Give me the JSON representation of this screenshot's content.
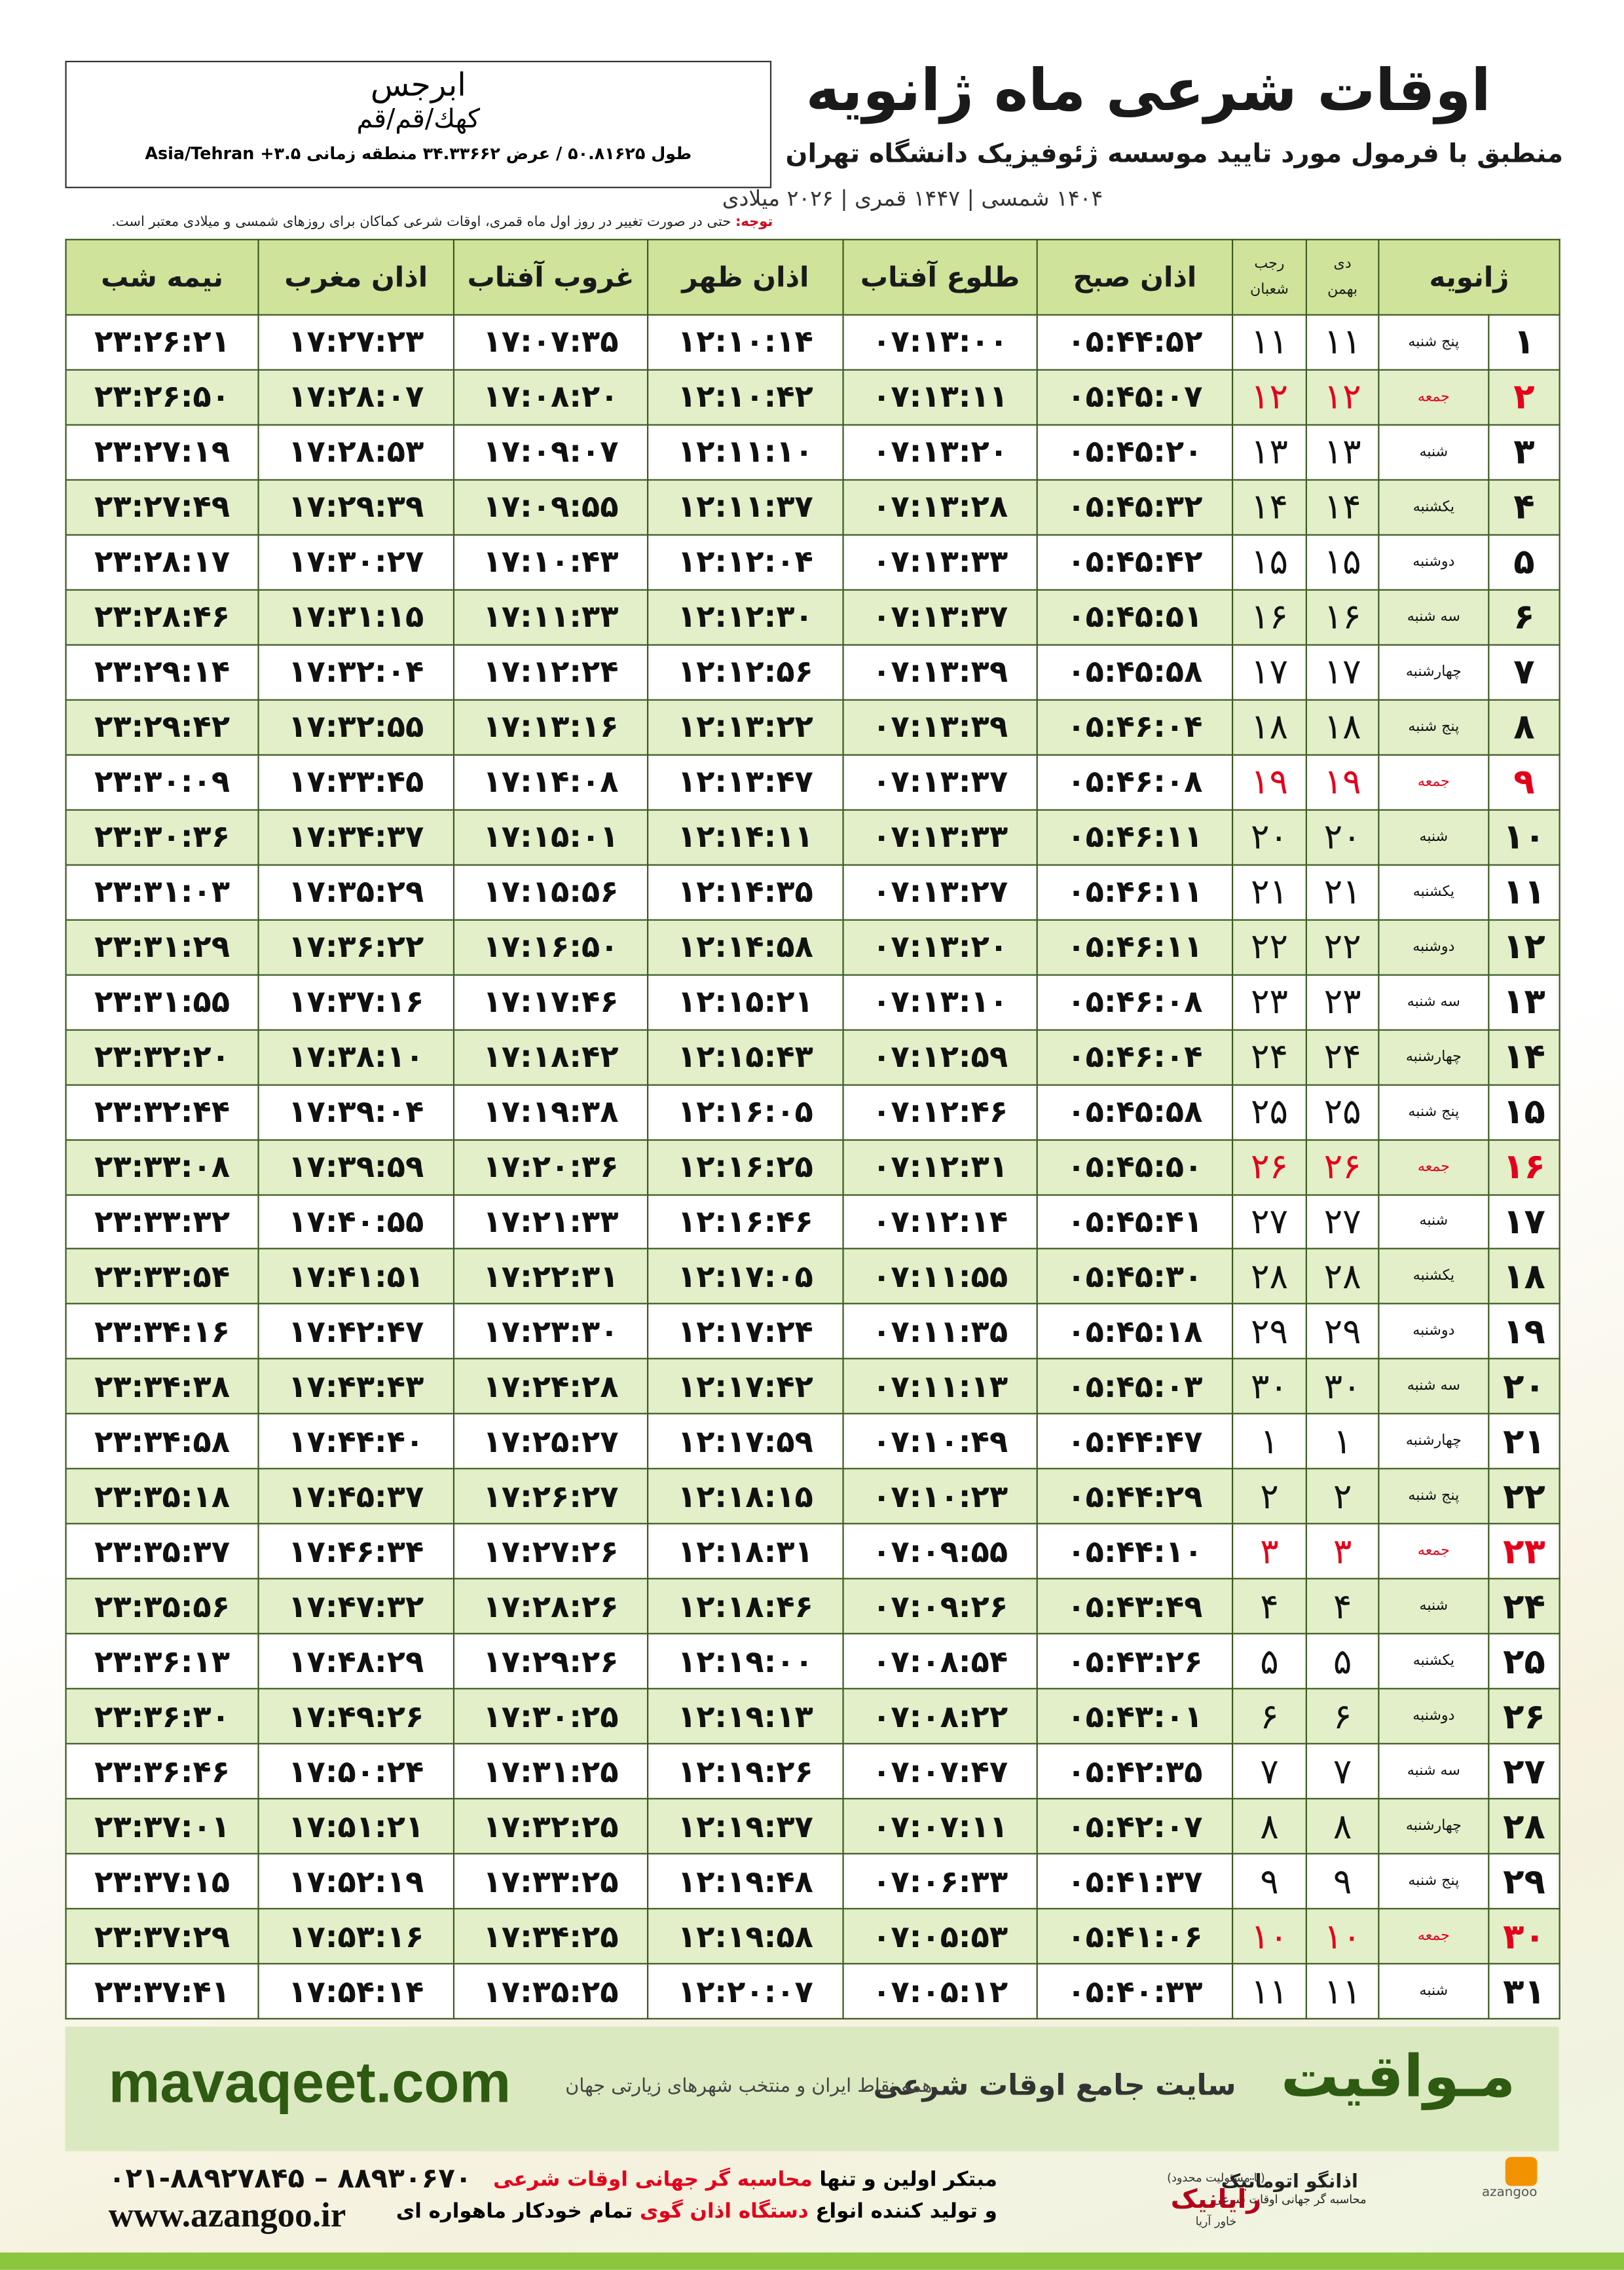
{
  "header": {
    "title": "اوقات شرعی ماه ژانویه",
    "subtitle": "منطبق با فرمول مورد تایید موسسه ژئوفیزیک دانشگاه تهران",
    "dates": "۱۴۰۴ شمسی | ۱۴۴۷ قمری | ۲۰۲۶ میلادی"
  },
  "location": {
    "name": "ابرجس",
    "region": "کهك/قم/قم",
    "coords": "طول ۵۰.۸۱۶۲۵ / عرض ۳۴.۳۳۶۶۲ منطقه زمانی ۳.۵+ Asia/Tehran"
  },
  "note": {
    "label": "توجه:",
    "text": "حتی در صورت تغییر در روز اول ماه قمری، اوقات شرعی کماکان برای روزهای شمسی و میلادی معتبر است."
  },
  "table": {
    "headers": [
      "ژانویه",
      {
        "top": "دی",
        "bottom": "بهمن"
      },
      {
        "top": "رجب",
        "bottom": "شعبان"
      },
      "اذان صبح",
      "طلوع آفتاب",
      "اذان ظهر",
      "غروب آفتاب",
      "اذان مغرب",
      "نیمه شب"
    ],
    "rows": [
      [
        "۱",
        "پنج شنبه",
        "۱۱",
        "۱۱",
        "۰۵:۴۴:۵۲",
        "۰۷:۱۳:۰۰",
        "۱۲:۱۰:۱۴",
        "۱۷:۰۷:۳۵",
        "۱۷:۲۷:۲۳",
        "۲۳:۲۶:۲۱"
      ],
      [
        "۲",
        "جمعه",
        "۱۲",
        "۱۲",
        "۰۵:۴۵:۰۷",
        "۰۷:۱۳:۱۱",
        "۱۲:۱۰:۴۲",
        "۱۷:۰۸:۲۰",
        "۱۷:۲۸:۰۷",
        "۲۳:۲۶:۵۰"
      ],
      [
        "۳",
        "شنبه",
        "۱۳",
        "۱۳",
        "۰۵:۴۵:۲۰",
        "۰۷:۱۳:۲۰",
        "۱۲:۱۱:۱۰",
        "۱۷:۰۹:۰۷",
        "۱۷:۲۸:۵۳",
        "۲۳:۲۷:۱۹"
      ],
      [
        "۴",
        "یکشنبه",
        "۱۴",
        "۱۴",
        "۰۵:۴۵:۳۲",
        "۰۷:۱۳:۲۸",
        "۱۲:۱۱:۳۷",
        "۱۷:۰۹:۵۵",
        "۱۷:۲۹:۳۹",
        "۲۳:۲۷:۴۹"
      ],
      [
        "۵",
        "دوشنبه",
        "۱۵",
        "۱۵",
        "۰۵:۴۵:۴۲",
        "۰۷:۱۳:۳۳",
        "۱۲:۱۲:۰۴",
        "۱۷:۱۰:۴۳",
        "۱۷:۳۰:۲۷",
        "۲۳:۲۸:۱۷"
      ],
      [
        "۶",
        "سه شنبه",
        "۱۶",
        "۱۶",
        "۰۵:۴۵:۵۱",
        "۰۷:۱۳:۳۷",
        "۱۲:۱۲:۳۰",
        "۱۷:۱۱:۳۳",
        "۱۷:۳۱:۱۵",
        "۲۳:۲۸:۴۶"
      ],
      [
        "۷",
        "چهارشنبه",
        "۱۷",
        "۱۷",
        "۰۵:۴۵:۵۸",
        "۰۷:۱۳:۳۹",
        "۱۲:۱۲:۵۶",
        "۱۷:۱۲:۲۴",
        "۱۷:۳۲:۰۴",
        "۲۳:۲۹:۱۴"
      ],
      [
        "۸",
        "پنج شنبه",
        "۱۸",
        "۱۸",
        "۰۵:۴۶:۰۴",
        "۰۷:۱۳:۳۹",
        "۱۲:۱۳:۲۲",
        "۱۷:۱۳:۱۶",
        "۱۷:۳۲:۵۵",
        "۲۳:۲۹:۴۲"
      ],
      [
        "۹",
        "جمعه",
        "۱۹",
        "۱۹",
        "۰۵:۴۶:۰۸",
        "۰۷:۱۳:۳۷",
        "۱۲:۱۳:۴۷",
        "۱۷:۱۴:۰۸",
        "۱۷:۳۳:۴۵",
        "۲۳:۳۰:۰۹"
      ],
      [
        "۱۰",
        "شنبه",
        "۲۰",
        "۲۰",
        "۰۵:۴۶:۱۱",
        "۰۷:۱۳:۳۳",
        "۱۲:۱۴:۱۱",
        "۱۷:۱۵:۰۱",
        "۱۷:۳۴:۳۷",
        "۲۳:۳۰:۳۶"
      ],
      [
        "۱۱",
        "یکشنبه",
        "۲۱",
        "۲۱",
        "۰۵:۴۶:۱۱",
        "۰۷:۱۳:۲۷",
        "۱۲:۱۴:۳۵",
        "۱۷:۱۵:۵۶",
        "۱۷:۳۵:۲۹",
        "۲۳:۳۱:۰۳"
      ],
      [
        "۱۲",
        "دوشنبه",
        "۲۲",
        "۲۲",
        "۰۵:۴۶:۱۱",
        "۰۷:۱۳:۲۰",
        "۱۲:۱۴:۵۸",
        "۱۷:۱۶:۵۰",
        "۱۷:۳۶:۲۲",
        "۲۳:۳۱:۲۹"
      ],
      [
        "۱۳",
        "سه شنبه",
        "۲۳",
        "۲۳",
        "۰۵:۴۶:۰۸",
        "۰۷:۱۳:۱۰",
        "۱۲:۱۵:۲۱",
        "۱۷:۱۷:۴۶",
        "۱۷:۳۷:۱۶",
        "۲۳:۳۱:۵۵"
      ],
      [
        "۱۴",
        "چهارشنبه",
        "۲۴",
        "۲۴",
        "۰۵:۴۶:۰۴",
        "۰۷:۱۲:۵۹",
        "۱۲:۱۵:۴۳",
        "۱۷:۱۸:۴۲",
        "۱۷:۳۸:۱۰",
        "۲۳:۳۲:۲۰"
      ],
      [
        "۱۵",
        "پنج شنبه",
        "۲۵",
        "۲۵",
        "۰۵:۴۵:۵۸",
        "۰۷:۱۲:۴۶",
        "۱۲:۱۶:۰۵",
        "۱۷:۱۹:۳۸",
        "۱۷:۳۹:۰۴",
        "۲۳:۳۲:۴۴"
      ],
      [
        "۱۶",
        "جمعه",
        "۲۶",
        "۲۶",
        "۰۵:۴۵:۵۰",
        "۰۷:۱۲:۳۱",
        "۱۲:۱۶:۲۵",
        "۱۷:۲۰:۳۶",
        "۱۷:۳۹:۵۹",
        "۲۳:۳۳:۰۸"
      ],
      [
        "۱۷",
        "شنبه",
        "۲۷",
        "۲۷",
        "۰۵:۴۵:۴۱",
        "۰۷:۱۲:۱۴",
        "۱۲:۱۶:۴۶",
        "۱۷:۲۱:۳۳",
        "۱۷:۴۰:۵۵",
        "۲۳:۳۳:۳۲"
      ],
      [
        "۱۸",
        "یکشنبه",
        "۲۸",
        "۲۸",
        "۰۵:۴۵:۳۰",
        "۰۷:۱۱:۵۵",
        "۱۲:۱۷:۰۵",
        "۱۷:۲۲:۳۱",
        "۱۷:۴۱:۵۱",
        "۲۳:۳۳:۵۴"
      ],
      [
        "۱۹",
        "دوشنبه",
        "۲۹",
        "۲۹",
        "۰۵:۴۵:۱۸",
        "۰۷:۱۱:۳۵",
        "۱۲:۱۷:۲۴",
        "۱۷:۲۳:۳۰",
        "۱۷:۴۲:۴۷",
        "۲۳:۳۴:۱۶"
      ],
      [
        "۲۰",
        "سه شنبه",
        "۳۰",
        "۳۰",
        "۰۵:۴۵:۰۳",
        "۰۷:۱۱:۱۳",
        "۱۲:۱۷:۴۲",
        "۱۷:۲۴:۲۸",
        "۱۷:۴۳:۴۳",
        "۲۳:۳۴:۳۸"
      ],
      [
        "۲۱",
        "چهارشنبه",
        "۱",
        "۱",
        "۰۵:۴۴:۴۷",
        "۰۷:۱۰:۴۹",
        "۱۲:۱۷:۵۹",
        "۱۷:۲۵:۲۷",
        "۱۷:۴۴:۴۰",
        "۲۳:۳۴:۵۸"
      ],
      [
        "۲۲",
        "پنج شنبه",
        "۲",
        "۲",
        "۰۵:۴۴:۲۹",
        "۰۷:۱۰:۲۳",
        "۱۲:۱۸:۱۵",
        "۱۷:۲۶:۲۷",
        "۱۷:۴۵:۳۷",
        "۲۳:۳۵:۱۸"
      ],
      [
        "۲۳",
        "جمعه",
        "۳",
        "۳",
        "۰۵:۴۴:۱۰",
        "۰۷:۰۹:۵۵",
        "۱۲:۱۸:۳۱",
        "۱۷:۲۷:۲۶",
        "۱۷:۴۶:۳۴",
        "۲۳:۳۵:۳۷"
      ],
      [
        "۲۴",
        "شنبه",
        "۴",
        "۴",
        "۰۵:۴۳:۴۹",
        "۰۷:۰۹:۲۶",
        "۱۲:۱۸:۴۶",
        "۱۷:۲۸:۲۶",
        "۱۷:۴۷:۳۲",
        "۲۳:۳۵:۵۶"
      ],
      [
        "۲۵",
        "یکشنبه",
        "۵",
        "۵",
        "۰۵:۴۳:۲۶",
        "۰۷:۰۸:۵۴",
        "۱۲:۱۹:۰۰",
        "۱۷:۲۹:۲۶",
        "۱۷:۴۸:۲۹",
        "۲۳:۳۶:۱۳"
      ],
      [
        "۲۶",
        "دوشنبه",
        "۶",
        "۶",
        "۰۵:۴۳:۰۱",
        "۰۷:۰۸:۲۲",
        "۱۲:۱۹:۱۳",
        "۱۷:۳۰:۲۵",
        "۱۷:۴۹:۲۶",
        "۲۳:۳۶:۳۰"
      ],
      [
        "۲۷",
        "سه شنبه",
        "۷",
        "۷",
        "۰۵:۴۲:۳۵",
        "۰۷:۰۷:۴۷",
        "۱۲:۱۹:۲۶",
        "۱۷:۳۱:۲۵",
        "۱۷:۵۰:۲۴",
        "۲۳:۳۶:۴۶"
      ],
      [
        "۲۸",
        "چهارشنبه",
        "۸",
        "۸",
        "۰۵:۴۲:۰۷",
        "۰۷:۰۷:۱۱",
        "۱۲:۱۹:۳۷",
        "۱۷:۳۲:۲۵",
        "۱۷:۵۱:۲۱",
        "۲۳:۳۷:۰۱"
      ],
      [
        "۲۹",
        "پنج شنبه",
        "۹",
        "۹",
        "۰۵:۴۱:۳۷",
        "۰۷:۰۶:۳۳",
        "۱۲:۱۹:۴۸",
        "۱۷:۳۳:۲۵",
        "۱۷:۵۲:۱۹",
        "۲۳:۳۷:۱۵"
      ],
      [
        "۳۰",
        "جمعه",
        "۱۰",
        "۱۰",
        "۰۵:۴۱:۰۶",
        "۰۷:۰۵:۵۳",
        "۱۲:۱۹:۵۸",
        "۱۷:۳۴:۲۵",
        "۱۷:۵۳:۱۶",
        "۲۳:۳۷:۲۹"
      ],
      [
        "۳۱",
        "شنبه",
        "۱۱",
        "۱۱",
        "۰۵:۴۰:۳۳",
        "۰۷:۰۵:۱۲",
        "۱۲:۲۰:۰۷",
        "۱۷:۳۵:۲۵",
        "۱۷:۵۴:۱۴",
        "۲۳:۳۷:۴۱"
      ]
    ]
  },
  "footer": {
    "site": "mavaqeet.com",
    "brand": "مـواقیت",
    "slogan": "سایت جامع اوقات شرعی",
    "coverage": "همه نقاط ایران و منتخب شهرهای زیارتی جهان"
  },
  "contact": {
    "phone": "۰۲۱-۸۸۹۲۷۸۴۵ – ۸۸۹۳۰۶۷۰",
    "website": "www.azangoo.ir",
    "line1": [
      "مبتکر اولین و تنها",
      "محاسبه گر جهانی اوقات شرعی"
    ],
    "line2": [
      "و تولید کننده انواع",
      "دستگاه اذان گوی",
      "تمام خودکار ماهواره ای"
    ]
  },
  "logos": {
    "azangoo": "اذانگو اتوماتیک",
    "azangoo_tag": "محاسبه گر جهانی اوقات شرعی",
    "azangoo_latin": "azangoo",
    "rayanik_note": "(با مسئولیت محدود)",
    "rayanik": "رایانیک",
    "khavar": "خاور آریا"
  }
}
